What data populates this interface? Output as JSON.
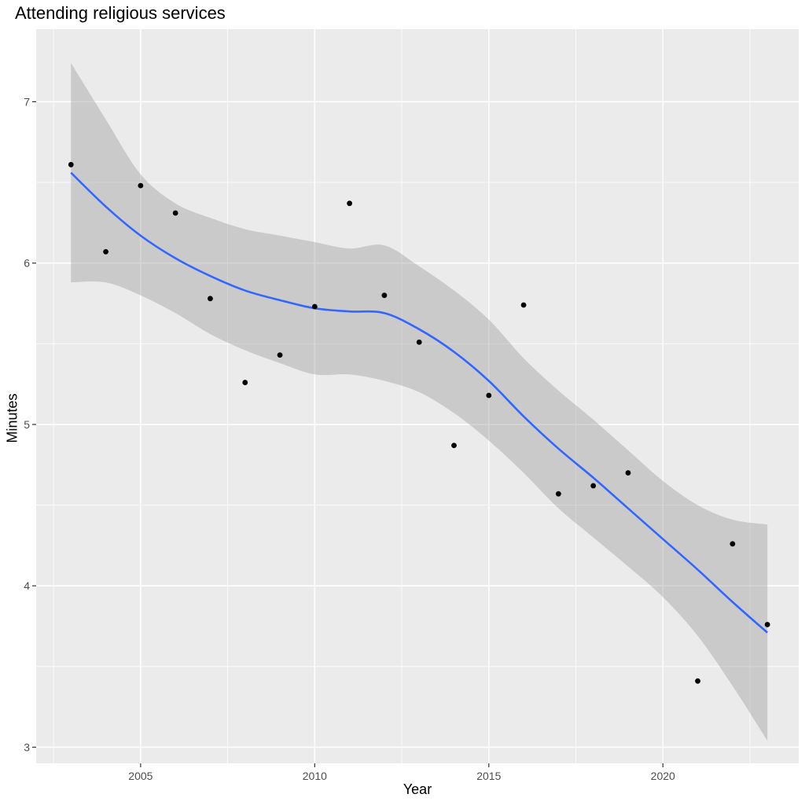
{
  "chart_data": {
    "type": "scatter",
    "title": "Attending religious services",
    "xlabel": "Year",
    "ylabel": "Minutes",
    "xlim": [
      2002.0,
      2023.9
    ],
    "ylim": [
      2.9,
      7.45
    ],
    "x_ticks": [
      2005,
      2010,
      2015,
      2020
    ],
    "x_tick_labels": [
      "2005",
      "2010",
      "2015",
      "2020"
    ],
    "y_ticks": [
      3,
      4,
      5,
      6,
      7
    ],
    "y_tick_labels": [
      "3",
      "4",
      "5",
      "6",
      "7"
    ],
    "grid": true,
    "legend": "none",
    "colors": {
      "panel": "#ebebeb",
      "grid": "#ffffff",
      "points": "#000000",
      "smooth": "#3366ff",
      "ribbon": "#999999"
    },
    "points": {
      "x": [
        2003,
        2004,
        2005,
        2006,
        2007,
        2008,
        2009,
        2010,
        2011,
        2012,
        2013,
        2014,
        2015,
        2016,
        2017,
        2018,
        2019,
        2021,
        2022,
        2023
      ],
      "y": [
        6.61,
        6.07,
        6.48,
        6.31,
        5.78,
        5.26,
        5.43,
        5.73,
        6.37,
        5.8,
        5.51,
        4.87,
        5.18,
        5.74,
        4.57,
        4.62,
        4.7,
        3.41,
        4.26,
        3.76
      ]
    },
    "smooth": {
      "x": [
        2003,
        2004,
        2005,
        2006,
        2007,
        2008,
        2009,
        2010,
        2011,
        2012,
        2013,
        2014,
        2015,
        2016,
        2017,
        2018,
        2019,
        2020,
        2021,
        2022,
        2023
      ],
      "y": [
        6.56,
        6.35,
        6.17,
        6.03,
        5.92,
        5.83,
        5.77,
        5.72,
        5.7,
        5.69,
        5.59,
        5.45,
        5.27,
        5.05,
        4.85,
        4.67,
        4.48,
        4.29,
        4.1,
        3.9,
        3.71
      ],
      "lower": [
        5.88,
        5.88,
        5.8,
        5.69,
        5.56,
        5.46,
        5.38,
        5.31,
        5.31,
        5.27,
        5.2,
        5.07,
        4.9,
        4.7,
        4.48,
        4.3,
        4.12,
        3.93,
        3.69,
        3.38,
        3.04
      ],
      "upper": [
        7.24,
        6.89,
        6.55,
        6.37,
        6.28,
        6.21,
        6.17,
        6.13,
        6.09,
        6.11,
        5.98,
        5.83,
        5.65,
        5.41,
        5.21,
        5.03,
        4.84,
        4.65,
        4.5,
        4.41,
        4.38
      ]
    }
  }
}
